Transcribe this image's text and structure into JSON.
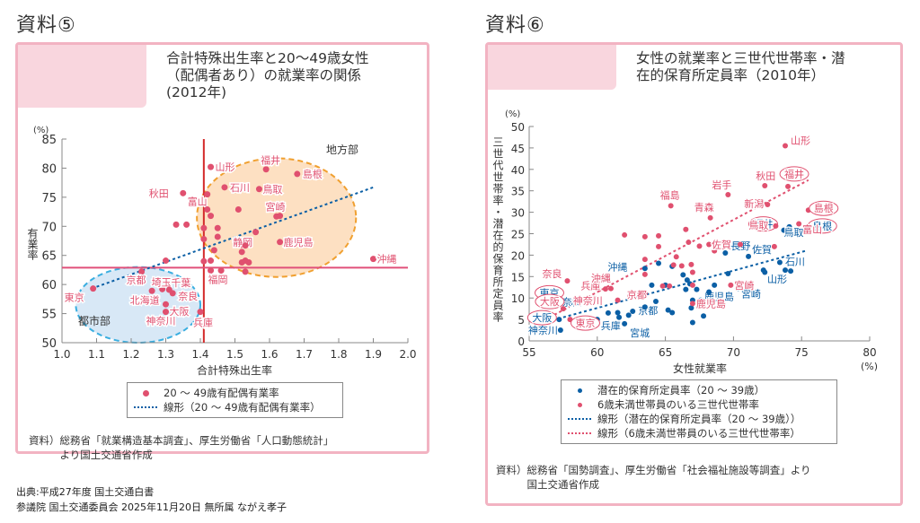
{
  "panels": [
    {
      "heading": "資料⑤",
      "title": "合計特殊出生率と20～49歳女性\n（配偶者あり）の就業率の関係\n(2012年)",
      "legend": [
        "20 ～ 49歳有配偶有業率",
        "線形（20 ～ 49歳有配偶有業率）"
      ],
      "source": "資料）総務省「就業構造基本調査」、厚生労働省「人口動態統計」\n　　　より国土交通省作成"
    },
    {
      "heading": "資料⑥",
      "title": "女性の就業率と三世代世帯率・潜\n在的保育所定員率（2010年）",
      "legend": [
        "潜在的保育所定員率（20 ～ 39歳）",
        "6歳未満世帯員のいる三世代世帯率",
        "線形（潜在的保育所定員率（20 ～ 39歳））",
        "線形（6歳未満世帯員のいる三世代世帯率）"
      ],
      "source": "資料）総務省「国勢調査」、厚生労働省「社会福祉施設等調査」より\n　　　国土交通省作成"
    }
  ],
  "footer": {
    "line1": "出典:平成27年度 国土交通白書",
    "line2": "参議院 国土交通委員会 2025年11月20日 無所属 ながえ孝子"
  },
  "colors": {
    "pink": "#e0506f",
    "blue": "#0b5fa5",
    "red_line": "#d42a2a",
    "orange": "#f0a030",
    "orange_fill": "#fde0c2",
    "blue_fill": "#d8e8f6",
    "blue_dash": "#3aaee0",
    "border": "#f2b3c2"
  },
  "chart_data": [
    {
      "type": "scatter",
      "title": "合計特殊出生率と20～49歳女性（配偶者あり）の就業率の関係(2012年)",
      "xlabel": "合計特殊出生率",
      "ylabel": "有業率",
      "yunit": "(%)",
      "xlim": [
        1.0,
        2.0
      ],
      "ylim": [
        50,
        85
      ],
      "xticks": [
        "1.0",
        "1.1",
        "1.2",
        "1.3",
        "1.4",
        "1.5",
        "1.6",
        "1.7",
        "1.8",
        "1.9",
        "2.0"
      ],
      "yticks": [
        "50",
        "55",
        "60",
        "65",
        "70",
        "75",
        "80",
        "85"
      ],
      "reference_lines": {
        "x": 1.41,
        "y": 62.9
      },
      "regions": [
        {
          "label": "地方部",
          "cx": 1.62,
          "cy": 71.5,
          "rx": 0.23,
          "ry": 10.2,
          "style": "orange"
        },
        {
          "label": "都市部",
          "cx": 1.22,
          "cy": 56.5,
          "rx": 0.18,
          "ry": 6.5,
          "style": "blue"
        }
      ],
      "trendline": [
        [
          1.1,
          59.6
        ],
        [
          1.9,
          76.7
        ]
      ],
      "series": [
        {
          "name": "20 ～ 49歳有配偶有業率",
          "points": [
            {
              "x": 1.09,
              "y": 59.3,
              "label": "東京"
            },
            {
              "x": 1.23,
              "y": 62.2,
              "label": "京都"
            },
            {
              "x": 1.26,
              "y": 58.9,
              "label": "北海道"
            },
            {
              "x": 1.29,
              "y": 59.2,
              "label": "埼玉"
            },
            {
              "x": 1.31,
              "y": 59.1,
              "label": "千葉"
            },
            {
              "x": 1.32,
              "y": 58.5,
              "label": "奈良"
            },
            {
              "x": 1.3,
              "y": 56.6,
              "label": "大阪"
            },
            {
              "x": 1.3,
              "y": 55.3,
              "label": "神奈川"
            },
            {
              "x": 1.4,
              "y": 55.3,
              "label": "兵庫"
            },
            {
              "x": 1.3,
              "y": 64.1,
              "label": ""
            },
            {
              "x": 1.43,
              "y": 62.4,
              "label": "福岡"
            },
            {
              "x": 1.46,
              "y": 62.4,
              "label": ""
            },
            {
              "x": 1.43,
              "y": 80.2,
              "label": "山形"
            },
            {
              "x": 1.35,
              "y": 75.7,
              "label": "秋田"
            },
            {
              "x": 1.42,
              "y": 75.5,
              "label": "富山"
            },
            {
              "x": 1.47,
              "y": 76.7,
              "label": "石川"
            },
            {
              "x": 1.42,
              "y": 72.9,
              "label": ""
            },
            {
              "x": 1.43,
              "y": 71.8,
              "label": ""
            },
            {
              "x": 1.41,
              "y": 69.7,
              "label": ""
            },
            {
              "x": 1.45,
              "y": 69.7,
              "label": ""
            },
            {
              "x": 1.33,
              "y": 70.3,
              "label": ""
            },
            {
              "x": 1.36,
              "y": 70.3,
              "label": ""
            },
            {
              "x": 1.45,
              "y": 68.2,
              "label": ""
            },
            {
              "x": 1.44,
              "y": 65.9,
              "label": ""
            },
            {
              "x": 1.41,
              "y": 67.8,
              "label": ""
            },
            {
              "x": 1.41,
              "y": 64.0,
              "label": ""
            },
            {
              "x": 1.43,
              "y": 64.1,
              "label": ""
            },
            {
              "x": 1.51,
              "y": 72.9,
              "label": ""
            },
            {
              "x": 1.59,
              "y": 79.8,
              "label": "福井"
            },
            {
              "x": 1.68,
              "y": 79.0,
              "label": "島根"
            },
            {
              "x": 1.57,
              "y": 76.4,
              "label": "鳥取"
            },
            {
              "x": 1.63,
              "y": 71.8,
              "label": "宮崎"
            },
            {
              "x": 1.62,
              "y": 71.7,
              "label": ""
            },
            {
              "x": 1.56,
              "y": 69.0,
              "label": ""
            },
            {
              "x": 1.63,
              "y": 67.3,
              "label": "鹿児島"
            },
            {
              "x": 1.52,
              "y": 66.8,
              "label": "静岡"
            },
            {
              "x": 1.53,
              "y": 66.7,
              "label": ""
            },
            {
              "x": 1.52,
              "y": 65.6,
              "label": ""
            },
            {
              "x": 1.52,
              "y": 63.8,
              "label": ""
            },
            {
              "x": 1.53,
              "y": 64.1,
              "label": ""
            },
            {
              "x": 1.54,
              "y": 63.8,
              "label": ""
            },
            {
              "x": 1.53,
              "y": 62.2,
              "label": ""
            },
            {
              "x": 1.9,
              "y": 64.4,
              "label": "沖縄"
            }
          ]
        }
      ]
    },
    {
      "type": "scatter",
      "title": "女性の就業率と三世代世帯率・潜在的保育所定員率（2010年）",
      "xlabel": "女性就業率",
      "xunit": "(%)",
      "ylabel": "三世代世帯率・潜在的保育所定員率",
      "yunit": "(%)",
      "xlim": [
        55,
        80
      ],
      "ylim": [
        0,
        50
      ],
      "xticks": [
        "55",
        "60",
        "65",
        "70",
        "75",
        "80"
      ],
      "yticks": [
        "0",
        "5",
        "10",
        "15",
        "20",
        "25",
        "30",
        "35",
        "40",
        "45",
        "50"
      ],
      "series": [
        {
          "name": "潜在的保育所定員率（20 ～ 39歳）",
          "color": "blue",
          "trendline": [
            [
              57.5,
              5.5
            ],
            [
              75.3,
              21.0
            ]
          ],
          "points": [
            {
              "x": 57.3,
              "y": 2.5,
              "label": "神奈川"
            },
            {
              "x": 57.2,
              "y": 5.0,
              "label": "大阪"
            },
            {
              "x": 58.0,
              "y": 8.7,
              "label": "東京"
            },
            {
              "x": 58.2,
              "y": 9.1,
              "label": "奈良"
            },
            {
              "x": 60.0,
              "y": 5.0,
              "label": "兵庫"
            },
            {
              "x": 60.5,
              "y": 14.7,
              "label": "沖縄"
            },
            {
              "x": 60.8,
              "y": 6.5,
              "label": ""
            },
            {
              "x": 61.5,
              "y": 6.6,
              "label": ""
            },
            {
              "x": 61.6,
              "y": 5.5,
              "label": ""
            },
            {
              "x": 62.0,
              "y": 4.0,
              "label": "宮城"
            },
            {
              "x": 62.3,
              "y": 6.0,
              "label": ""
            },
            {
              "x": 62.6,
              "y": 6.9,
              "label": "京都"
            },
            {
              "x": 63.5,
              "y": 7.9,
              "label": ""
            },
            {
              "x": 63.5,
              "y": 16.9,
              "label": ""
            },
            {
              "x": 64.3,
              "y": 9.2,
              "label": ""
            },
            {
              "x": 64.5,
              "y": 18.1,
              "label": ""
            },
            {
              "x": 65.0,
              "y": 13.0,
              "label": ""
            },
            {
              "x": 64.0,
              "y": 13.0,
              "label": ""
            },
            {
              "x": 65.5,
              "y": 17.4,
              "label": ""
            },
            {
              "x": 65.2,
              "y": 7.2,
              "label": ""
            },
            {
              "x": 65.5,
              "y": 6.6,
              "label": ""
            },
            {
              "x": 66.3,
              "y": 15.4,
              "label": ""
            },
            {
              "x": 66.5,
              "y": 12.0,
              "label": ""
            },
            {
              "x": 66.6,
              "y": 14.2,
              "label": ""
            },
            {
              "x": 66.8,
              "y": 13.3,
              "label": ""
            },
            {
              "x": 66.9,
              "y": 7.7,
              "label": ""
            },
            {
              "x": 67.0,
              "y": 9.5,
              "label": ""
            },
            {
              "x": 67.0,
              "y": 4.3,
              "label": ""
            },
            {
              "x": 67.3,
              "y": 12.0,
              "label": ""
            },
            {
              "x": 67.6,
              "y": 9.5,
              "label": "鹿児島"
            },
            {
              "x": 67.8,
              "y": 5.8,
              "label": ""
            },
            {
              "x": 68.2,
              "y": 11.4,
              "label": ""
            },
            {
              "x": 68.6,
              "y": 13.0,
              "label": ""
            },
            {
              "x": 69.4,
              "y": 20.5,
              "label": "長野"
            },
            {
              "x": 69.6,
              "y": 15.7,
              "label": ""
            },
            {
              "x": 70.3,
              "y": 12.2,
              "label": "宮崎"
            },
            {
              "x": 71.1,
              "y": 19.7,
              "label": "佐賀"
            },
            {
              "x": 72.2,
              "y": 16.5,
              "label": ""
            },
            {
              "x": 72.3,
              "y": 16.0,
              "label": ""
            },
            {
              "x": 73.4,
              "y": 18.3,
              "label": "石川"
            },
            {
              "x": 73.8,
              "y": 16.5,
              "label": "山形"
            },
            {
              "x": 74.2,
              "y": 16.3,
              "label": ""
            },
            {
              "x": 73.7,
              "y": 25.8,
              "label": "福井"
            },
            {
              "x": 74.1,
              "y": 26.6,
              "label": "鳥取"
            },
            {
              "x": 75.4,
              "y": 26.6,
              "label": "島根"
            }
          ]
        },
        {
          "name": "6歳未満世帯員のいる三世代世帯率",
          "color": "pink",
          "trendline": [
            [
              56.5,
              5.5
            ],
            [
              75.5,
              37.5
            ]
          ],
          "points": [
            {
              "x": 57.5,
              "y": 7.5,
              "label": "大阪"
            },
            {
              "x": 58.0,
              "y": 5.0,
              "label": "東京"
            },
            {
              "x": 57.8,
              "y": 14.0,
              "label": "奈良"
            },
            {
              "x": 59.8,
              "y": 10.0,
              "label": "神奈川"
            },
            {
              "x": 60.1,
              "y": 12.0,
              "label": "兵庫"
            },
            {
              "x": 60.6,
              "y": 12.1,
              "label": "沖縄"
            },
            {
              "x": 61.0,
              "y": 12.2,
              "label": ""
            },
            {
              "x": 61.5,
              "y": 9.5,
              "label": ""
            },
            {
              "x": 62.0,
              "y": 24.7,
              "label": ""
            },
            {
              "x": 62.4,
              "y": 10.5,
              "label": ""
            },
            {
              "x": 63.5,
              "y": 11.0,
              "label": "京都"
            },
            {
              "x": 63.5,
              "y": 15.5,
              "label": ""
            },
            {
              "x": 63.5,
              "y": 19.0,
              "label": ""
            },
            {
              "x": 63.5,
              "y": 24.3,
              "label": ""
            },
            {
              "x": 64.5,
              "y": 22.0,
              "label": ""
            },
            {
              "x": 64.5,
              "y": 24.5,
              "label": ""
            },
            {
              "x": 64.8,
              "y": 12.8,
              "label": ""
            },
            {
              "x": 65.3,
              "y": 12.8,
              "label": ""
            },
            {
              "x": 65.6,
              "y": 17.7,
              "label": ""
            },
            {
              "x": 65.8,
              "y": 19.6,
              "label": ""
            },
            {
              "x": 66.2,
              "y": 17.5,
              "label": ""
            },
            {
              "x": 66.5,
              "y": 26.0,
              "label": ""
            },
            {
              "x": 66.7,
              "y": 23.0,
              "label": ""
            },
            {
              "x": 66.9,
              "y": 17.8,
              "label": ""
            },
            {
              "x": 67.0,
              "y": 16.0,
              "label": ""
            },
            {
              "x": 67.0,
              "y": 13.0,
              "label": ""
            },
            {
              "x": 67.5,
              "y": 22.1,
              "label": ""
            },
            {
              "x": 68.2,
              "y": 22.5,
              "label": ""
            },
            {
              "x": 68.6,
              "y": 21.0,
              "label": ""
            },
            {
              "x": 67.0,
              "y": 8.7,
              "label": "鹿児島"
            },
            {
              "x": 69.8,
              "y": 13.0,
              "label": "宮崎"
            },
            {
              "x": 65.4,
              "y": 31.5,
              "label": "福島"
            },
            {
              "x": 68.3,
              "y": 28.7,
              "label": "青森"
            },
            {
              "x": 69.6,
              "y": 34.1,
              "label": "岩手"
            },
            {
              "x": 70.5,
              "y": 22.5,
              "label": "佐賀"
            },
            {
              "x": 72.3,
              "y": 36.2,
              "label": "秋田"
            },
            {
              "x": 72.5,
              "y": 31.8,
              "label": "新潟"
            },
            {
              "x": 73.8,
              "y": 45.5,
              "label": "山形"
            },
            {
              "x": 74.0,
              "y": 36.0,
              "label": "福井"
            },
            {
              "x": 73.1,
              "y": 26.8,
              "label": "鳥取"
            },
            {
              "x": 75.5,
              "y": 30.5,
              "label": "島根"
            },
            {
              "x": 74.8,
              "y": 27.3,
              "label": "富山"
            },
            {
              "x": 73.0,
              "y": 22.0,
              "label": ""
            }
          ]
        }
      ]
    }
  ]
}
